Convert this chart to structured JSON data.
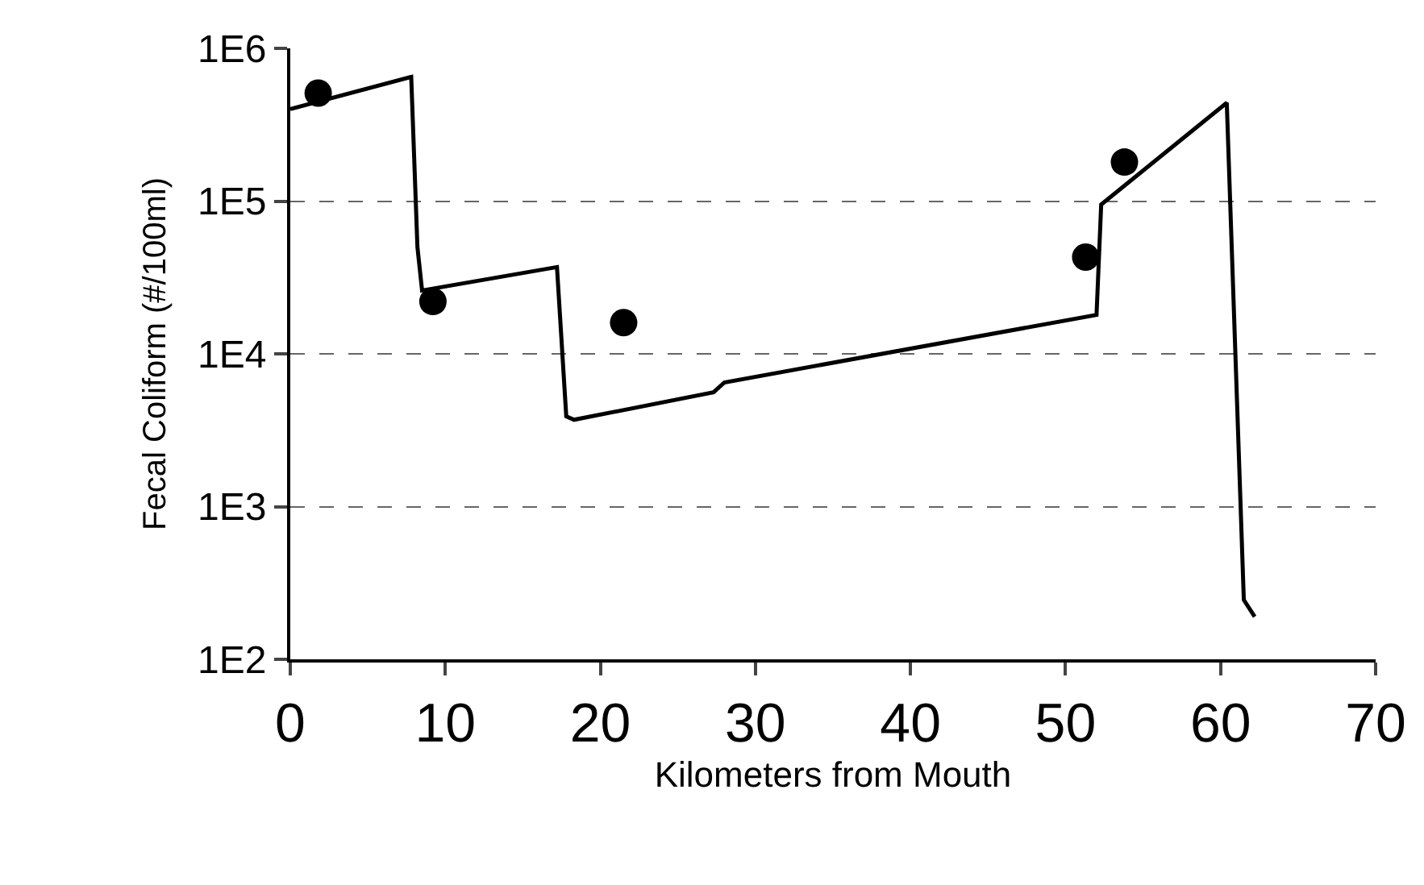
{
  "chart_data": {
    "type": "line",
    "xlabel": "Kilometers from Mouth",
    "ylabel": "Fecal Coliform (#/100ml)",
    "log": "y",
    "grid": "y",
    "xlim": [
      0,
      70
    ],
    "xticks": [
      0,
      10,
      20,
      30,
      40,
      50,
      60,
      70
    ],
    "ylim": [
      100,
      1000000
    ],
    "yticks": [
      {
        "value": 100,
        "label": "1E2"
      },
      {
        "value": 1000,
        "label": "1E3"
      },
      {
        "value": 10000,
        "label": "1E4"
      },
      {
        "value": 100000,
        "label": "1E5"
      },
      {
        "value": 1000000,
        "label": "1E6"
      }
    ],
    "series": [
      {
        "color": "#000000",
        "marker": "none",
        "line_style": "solid",
        "x": [
          0,
          7.8,
          8.2,
          8.5,
          17.2,
          17.8,
          18.3,
          27.3,
          28,
          52,
          52.3,
          60.4,
          61.5,
          62.2
        ],
        "values": [
          400000,
          650000,
          50000,
          26000,
          37000,
          3900,
          3700,
          5600,
          6500,
          18000,
          95000,
          440000,
          245,
          190
        ]
      },
      {
        "type": "scatter",
        "color": "#000000",
        "marker": "circle",
        "x": [
          1.8,
          9.2,
          21.5,
          51.3,
          53.8
        ],
        "values": [
          510000,
          22000,
          16000,
          43000,
          180000
        ]
      }
    ]
  }
}
